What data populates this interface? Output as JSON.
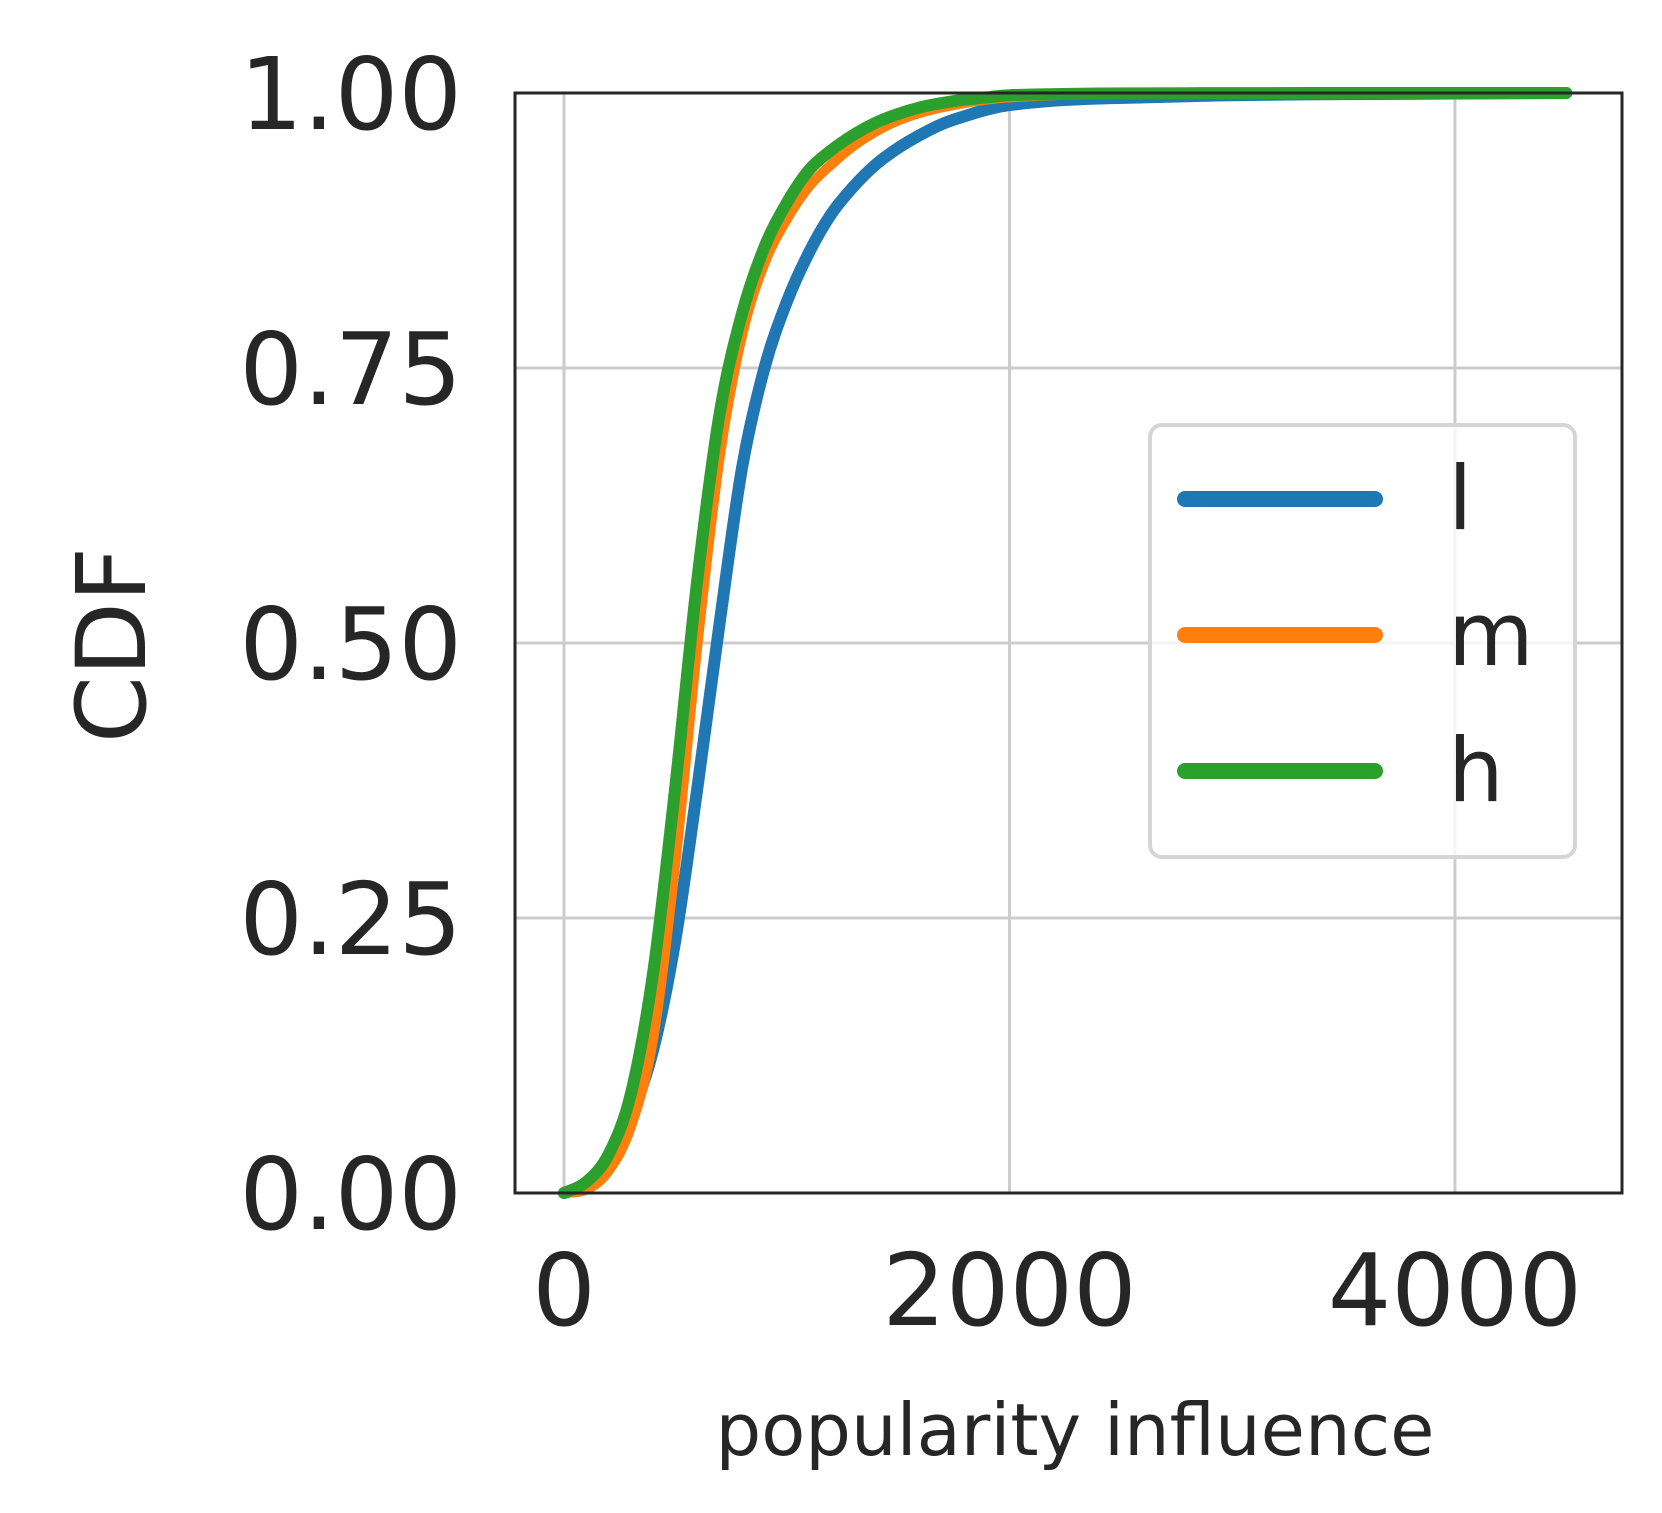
{
  "chart_data": {
    "type": "line",
    "title": "",
    "xlabel": "popularity influence",
    "ylabel": "CDF",
    "xlim": [
      -220,
      4750
    ],
    "ylim": [
      0,
      1
    ],
    "xticks": [
      0,
      2000,
      4000
    ],
    "xtick_labels": [
      "0",
      "2000",
      "4000"
    ],
    "yticks": [
      0,
      0.25,
      0.5,
      0.75,
      1.0
    ],
    "ytick_labels": [
      "0.00",
      "0.25",
      "0.50",
      "0.75",
      "1.00"
    ],
    "grid": true,
    "legend_position": "center-right",
    "series": [
      {
        "name": "l",
        "color": "#1f77b4",
        "x": [
          0,
          100,
          200,
          300,
          400,
          500,
          600,
          700,
          800,
          900,
          1000,
          1100,
          1200,
          1300,
          1400,
          1500,
          1600,
          1700,
          1800,
          1900,
          2000,
          2200,
          2400,
          2600,
          2800,
          3000,
          3500,
          4000,
          4500
        ],
        "y": [
          0.0,
          0.008,
          0.03,
          0.07,
          0.13,
          0.23,
          0.37,
          0.52,
          0.66,
          0.75,
          0.81,
          0.855,
          0.89,
          0.915,
          0.935,
          0.95,
          0.962,
          0.972,
          0.979,
          0.985,
          0.989,
          0.993,
          0.995,
          0.996,
          0.997,
          0.998,
          0.999,
          0.9995,
          1.0
        ]
      },
      {
        "name": "m",
        "color": "#ff7f0e",
        "x": [
          0,
          100,
          200,
          300,
          400,
          500,
          600,
          700,
          800,
          900,
          1000,
          1100,
          1200,
          1300,
          1400,
          1500,
          1600,
          1700,
          1800,
          1900,
          2000,
          2200,
          2400,
          2600,
          2800,
          3000,
          3500,
          4000,
          4500
        ],
        "y": [
          0.0,
          0.003,
          0.02,
          0.06,
          0.14,
          0.3,
          0.5,
          0.67,
          0.78,
          0.845,
          0.885,
          0.915,
          0.935,
          0.952,
          0.965,
          0.975,
          0.982,
          0.987,
          0.991,
          0.994,
          0.996,
          0.998,
          0.999,
          0.9993,
          0.9995,
          0.9997,
          0.9999,
          1.0,
          1.0
        ]
      },
      {
        "name": "h",
        "color": "#2ca02c",
        "x": [
          0,
          100,
          200,
          300,
          400,
          500,
          600,
          700,
          800,
          900,
          1000,
          1100,
          1200,
          1300,
          1400,
          1500,
          1600,
          1700,
          1800,
          1900,
          2000,
          2200,
          2400,
          2600,
          2800,
          3000,
          3500,
          4000,
          4500
        ],
        "y": [
          0.0,
          0.01,
          0.035,
          0.09,
          0.2,
          0.37,
          0.56,
          0.71,
          0.8,
          0.86,
          0.9,
          0.93,
          0.948,
          0.962,
          0.973,
          0.981,
          0.987,
          0.991,
          0.994,
          0.996,
          0.998,
          0.999,
          0.9995,
          0.9997,
          0.9998,
          0.9999,
          1.0,
          1.0,
          1.0
        ]
      }
    ]
  }
}
